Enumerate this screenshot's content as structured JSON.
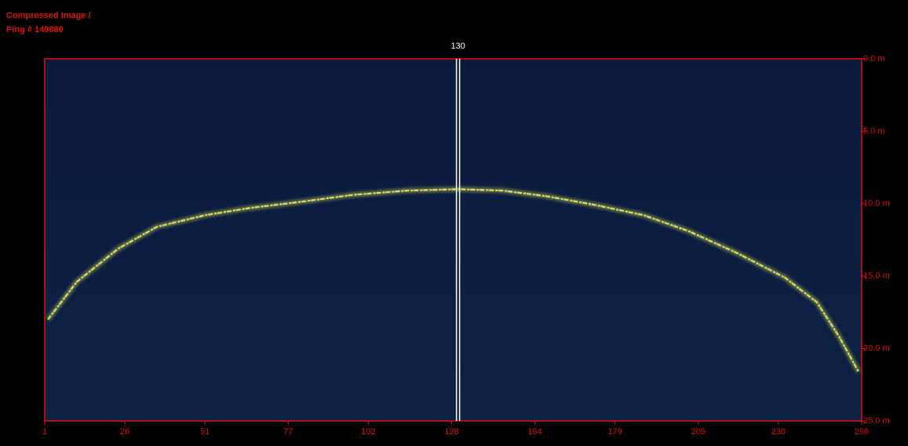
{
  "chart_data": {
    "type": "line",
    "title": "Compressed Image  /",
    "subtitle": "Ping # 149880",
    "cursor": 130,
    "x": [
      2,
      11,
      24,
      36,
      51,
      65,
      80,
      97,
      114,
      130,
      144,
      158,
      173,
      188,
      202,
      217,
      232,
      242,
      249,
      255
    ],
    "series": [
      {
        "color": "#e8f060",
        "values": [
          18.0,
          15.4,
          13.1,
          11.6,
          10.8,
          10.3,
          9.9,
          9.4,
          9.1,
          9.0,
          9.1,
          9.5,
          10.1,
          10.8,
          11.9,
          13.4,
          15.1,
          16.8,
          19.2,
          21.6
        ]
      }
    ],
    "xlim": [
      1,
      256
    ],
    "xticks": [
      1,
      26,
      51,
      77,
      102,
      128,
      154,
      179,
      205,
      230,
      256
    ],
    "ylim": [
      0,
      25
    ],
    "y_inverted": true,
    "yticks": [
      {
        "value": 0,
        "label": "0.0 m"
      },
      {
        "value": 5,
        "label": "5.0 m"
      },
      {
        "value": 10,
        "label": "10.0 m"
      },
      {
        "value": 15,
        "label": "15.0 m"
      },
      {
        "value": 20,
        "label": "20.0 m"
      },
      {
        "value": 25,
        "label": "25.0 m"
      }
    ],
    "axis_color": "#e01010",
    "background": "#0b1c3e"
  }
}
